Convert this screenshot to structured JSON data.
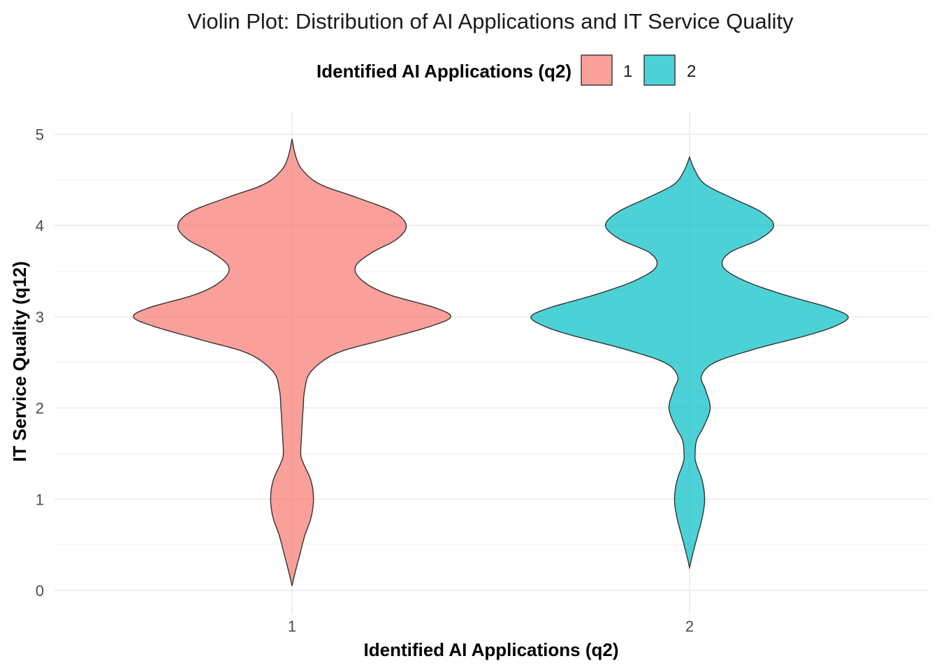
{
  "chart_data": {
    "type": "violin",
    "title": "Violin Plot: Distribution of AI Applications and IT Service Quality",
    "xlabel": "Identified AI Applications (q2)",
    "ylabel": "IT Service Quality (q12)",
    "categories": [
      "1",
      "2"
    ],
    "ylim": [
      -0.05,
      5.12
    ],
    "y_ticks": [
      "0",
      "1",
      "2",
      "3",
      "4",
      "5"
    ],
    "grid": true,
    "legend": {
      "title": "Identified AI Applications (q2)",
      "position": "top",
      "entries": [
        "1",
        "2"
      ]
    },
    "series": [
      {
        "name": "1",
        "color": "#F8766D",
        "y_min": 0.05,
        "y_max": 4.95,
        "density_profile": [
          [
            0.05,
            0.0
          ],
          [
            0.2,
            0.02
          ],
          [
            0.4,
            0.05
          ],
          [
            0.6,
            0.08
          ],
          [
            0.8,
            0.12
          ],
          [
            1.0,
            0.135
          ],
          [
            1.2,
            0.12
          ],
          [
            1.4,
            0.07
          ],
          [
            1.5,
            0.055
          ],
          [
            1.7,
            0.06
          ],
          [
            2.0,
            0.07
          ],
          [
            2.2,
            0.08
          ],
          [
            2.4,
            0.12
          ],
          [
            2.6,
            0.28
          ],
          [
            2.75,
            0.58
          ],
          [
            2.9,
            0.88
          ],
          [
            3.0,
            1.0
          ],
          [
            3.1,
            0.9
          ],
          [
            3.25,
            0.6
          ],
          [
            3.4,
            0.44
          ],
          [
            3.55,
            0.4
          ],
          [
            3.7,
            0.5
          ],
          [
            3.85,
            0.66
          ],
          [
            4.0,
            0.72
          ],
          [
            4.15,
            0.64
          ],
          [
            4.3,
            0.42
          ],
          [
            4.45,
            0.18
          ],
          [
            4.6,
            0.07
          ],
          [
            4.75,
            0.025
          ],
          [
            4.95,
            0.0
          ]
        ]
      },
      {
        "name": "2",
        "color": "#00BFC4",
        "y_min": 0.25,
        "y_max": 4.75,
        "density_profile": [
          [
            0.25,
            0.0
          ],
          [
            0.4,
            0.02
          ],
          [
            0.6,
            0.05
          ],
          [
            0.8,
            0.08
          ],
          [
            1.0,
            0.095
          ],
          [
            1.2,
            0.08
          ],
          [
            1.4,
            0.04
          ],
          [
            1.5,
            0.035
          ],
          [
            1.65,
            0.045
          ],
          [
            1.8,
            0.09
          ],
          [
            2.0,
            0.13
          ],
          [
            2.2,
            0.1
          ],
          [
            2.35,
            0.075
          ],
          [
            2.5,
            0.16
          ],
          [
            2.65,
            0.42
          ],
          [
            2.8,
            0.75
          ],
          [
            2.9,
            0.92
          ],
          [
            3.0,
            1.0
          ],
          [
            3.1,
            0.88
          ],
          [
            3.25,
            0.58
          ],
          [
            3.4,
            0.34
          ],
          [
            3.55,
            0.21
          ],
          [
            3.7,
            0.25
          ],
          [
            3.85,
            0.44
          ],
          [
            4.0,
            0.53
          ],
          [
            4.15,
            0.45
          ],
          [
            4.3,
            0.27
          ],
          [
            4.45,
            0.1
          ],
          [
            4.6,
            0.035
          ],
          [
            4.75,
            0.0
          ]
        ]
      }
    ]
  }
}
